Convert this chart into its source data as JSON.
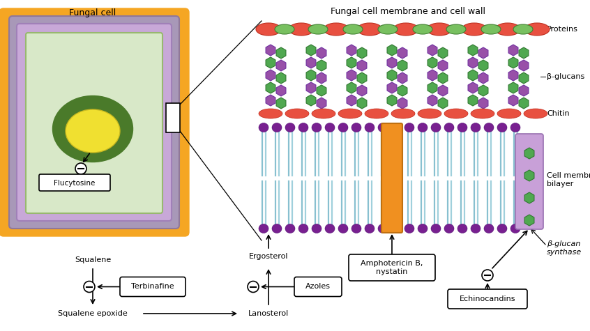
{
  "bg_color": "#ffffff",
  "orange_border": "#F5A623",
  "gray_layer": "#A898B8",
  "purple_layer": "#C8A8D8",
  "green_cell": "#D8E8C8",
  "dark_green_nucleus": "#4A7A2A",
  "yellow_nucleus": "#F0E030",
  "protein_red": "#E85040",
  "protein_green": "#78C060",
  "glucan_purple": "#9850A8",
  "glucan_green": "#50A850",
  "chitin_red": "#E85040",
  "head_purple": "#782090",
  "tail_cyan": "#88C0D0",
  "amp_orange": "#F09020",
  "synthase_purple": "#C8A0D8",
  "labels": {
    "fungal_cell": "Fungal cell",
    "membrane_title": "Fungal cell membrane and cell wall",
    "proteins": "Proteins",
    "beta_glucans": "β-glucans",
    "chitin": "Chitin",
    "cell_membrane": "Cell membrane\nbilayer",
    "flucytosine": "Flucytosine",
    "squalene": "Squalene",
    "squalene_epoxide": "Squalene epoxide",
    "terbinafine": "Terbinafine",
    "ergosterol": "Ergosterol",
    "lanosterol": "Lanosterol",
    "amphotericin": "Amphotericin B,\nnystatin",
    "azoles": "Azoles",
    "echinocandins": "Echinocandins",
    "beta_glucan_synthase": "β-glucan\nsynthase"
  }
}
